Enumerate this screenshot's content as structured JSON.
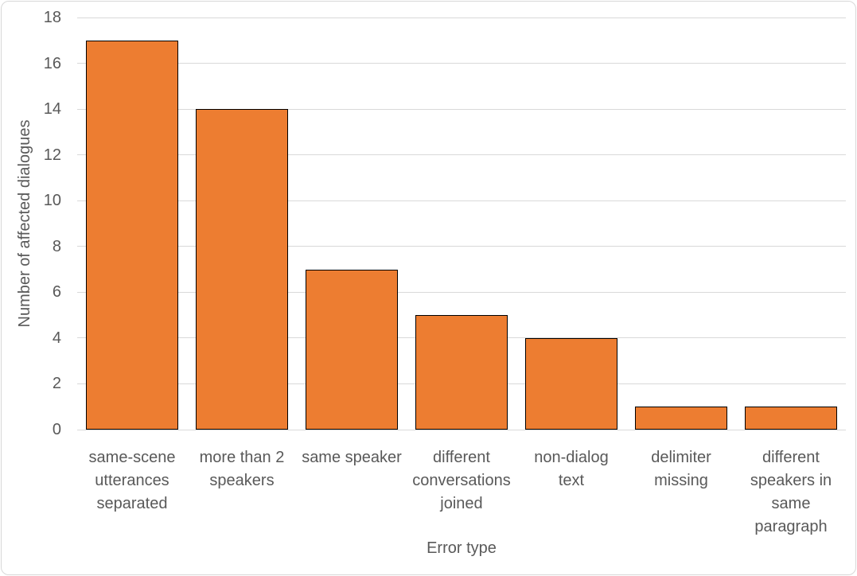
{
  "chart_data": {
    "type": "bar",
    "categories": [
      "same-scene\nutterances\nseparated",
      "more than 2\nspeakers",
      "same speaker",
      "different\nconversations\njoined",
      "non-dialog\ntext",
      "delimiter\nmissing",
      "different\nspeakers in\nsame\nparagraph"
    ],
    "values": [
      17,
      14,
      7,
      5,
      4,
      1,
      1
    ],
    "title": "",
    "xlabel": "Error type",
    "ylabel": "Number of affected dialogues",
    "ylim": [
      0,
      18
    ],
    "yticks": [
      0,
      2,
      4,
      6,
      8,
      10,
      12,
      14,
      16,
      18
    ],
    "grid": true,
    "legend_position": "none",
    "colors": {
      "bar_fill": "#ed7d31",
      "bar_border": "#000000",
      "gridline": "#d9d9d9",
      "axis_text": "#595959",
      "chart_border": "#d8d8d8",
      "background": "#ffffff"
    }
  }
}
